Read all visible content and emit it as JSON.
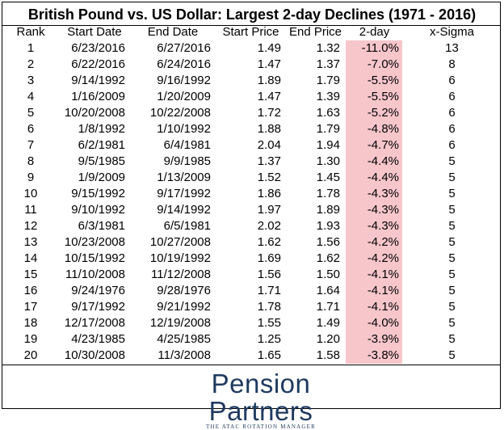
{
  "title": "British Pound vs. US Dollar: Largest 2-day Declines (1971 - 2016)",
  "columns": [
    "Rank",
    "Start Date",
    "End Date",
    "Start Price",
    "End Price",
    "2-day",
    "x-Sigma"
  ],
  "highlight_color": "#f7c6cb",
  "rows": [
    {
      "rank": "1",
      "start": "6/23/2016",
      "end": "6/27/2016",
      "sp": "1.49",
      "ep": "1.32",
      "chg": "-11.0%",
      "sig": "13"
    },
    {
      "rank": "2",
      "start": "6/22/2016",
      "end": "6/24/2016",
      "sp": "1.47",
      "ep": "1.37",
      "chg": "-7.0%",
      "sig": "8"
    },
    {
      "rank": "3",
      "start": "9/14/1992",
      "end": "9/16/1992",
      "sp": "1.89",
      "ep": "1.79",
      "chg": "-5.5%",
      "sig": "6"
    },
    {
      "rank": "4",
      "start": "1/16/2009",
      "end": "1/20/2009",
      "sp": "1.47",
      "ep": "1.39",
      "chg": "-5.5%",
      "sig": "6"
    },
    {
      "rank": "5",
      "start": "10/20/2008",
      "end": "10/22/2008",
      "sp": "1.72",
      "ep": "1.63",
      "chg": "-5.2%",
      "sig": "6"
    },
    {
      "rank": "6",
      "start": "1/8/1992",
      "end": "1/10/1992",
      "sp": "1.88",
      "ep": "1.79",
      "chg": "-4.8%",
      "sig": "6"
    },
    {
      "rank": "7",
      "start": "6/2/1981",
      "end": "6/4/1981",
      "sp": "2.04",
      "ep": "1.94",
      "chg": "-4.7%",
      "sig": "6"
    },
    {
      "rank": "8",
      "start": "9/5/1985",
      "end": "9/9/1985",
      "sp": "1.37",
      "ep": "1.30",
      "chg": "-4.4%",
      "sig": "5"
    },
    {
      "rank": "9",
      "start": "1/9/2009",
      "end": "1/13/2009",
      "sp": "1.52",
      "ep": "1.45",
      "chg": "-4.4%",
      "sig": "5"
    },
    {
      "rank": "10",
      "start": "9/15/1992",
      "end": "9/17/1992",
      "sp": "1.86",
      "ep": "1.78",
      "chg": "-4.3%",
      "sig": "5"
    },
    {
      "rank": "11",
      "start": "9/10/1992",
      "end": "9/14/1992",
      "sp": "1.97",
      "ep": "1.89",
      "chg": "-4.3%",
      "sig": "5"
    },
    {
      "rank": "12",
      "start": "6/3/1981",
      "end": "6/5/1981",
      "sp": "2.02",
      "ep": "1.93",
      "chg": "-4.3%",
      "sig": "5"
    },
    {
      "rank": "13",
      "start": "10/23/2008",
      "end": "10/27/2008",
      "sp": "1.62",
      "ep": "1.56",
      "chg": "-4.2%",
      "sig": "5"
    },
    {
      "rank": "14",
      "start": "10/15/1992",
      "end": "10/19/1992",
      "sp": "1.69",
      "ep": "1.62",
      "chg": "-4.2%",
      "sig": "5"
    },
    {
      "rank": "15",
      "start": "11/10/2008",
      "end": "11/12/2008",
      "sp": "1.56",
      "ep": "1.50",
      "chg": "-4.1%",
      "sig": "5"
    },
    {
      "rank": "16",
      "start": "9/24/1976",
      "end": "9/28/1976",
      "sp": "1.71",
      "ep": "1.64",
      "chg": "-4.1%",
      "sig": "5"
    },
    {
      "rank": "17",
      "start": "9/17/1992",
      "end": "9/21/1992",
      "sp": "1.78",
      "ep": "1.71",
      "chg": "-4.1%",
      "sig": "5"
    },
    {
      "rank": "18",
      "start": "12/17/2008",
      "end": "12/19/2008",
      "sp": "1.55",
      "ep": "1.49",
      "chg": "-4.0%",
      "sig": "5"
    },
    {
      "rank": "19",
      "start": "4/23/1985",
      "end": "4/25/1985",
      "sp": "1.25",
      "ep": "1.20",
      "chg": "-3.9%",
      "sig": "5"
    },
    {
      "rank": "20",
      "start": "10/30/2008",
      "end": "11/3/2008",
      "sp": "1.65",
      "ep": "1.58",
      "chg": "-3.8%",
      "sig": "5"
    }
  ],
  "logo": {
    "name": "Pension Partners",
    "tagline": "THE ATAC ROTATION MANAGER"
  }
}
